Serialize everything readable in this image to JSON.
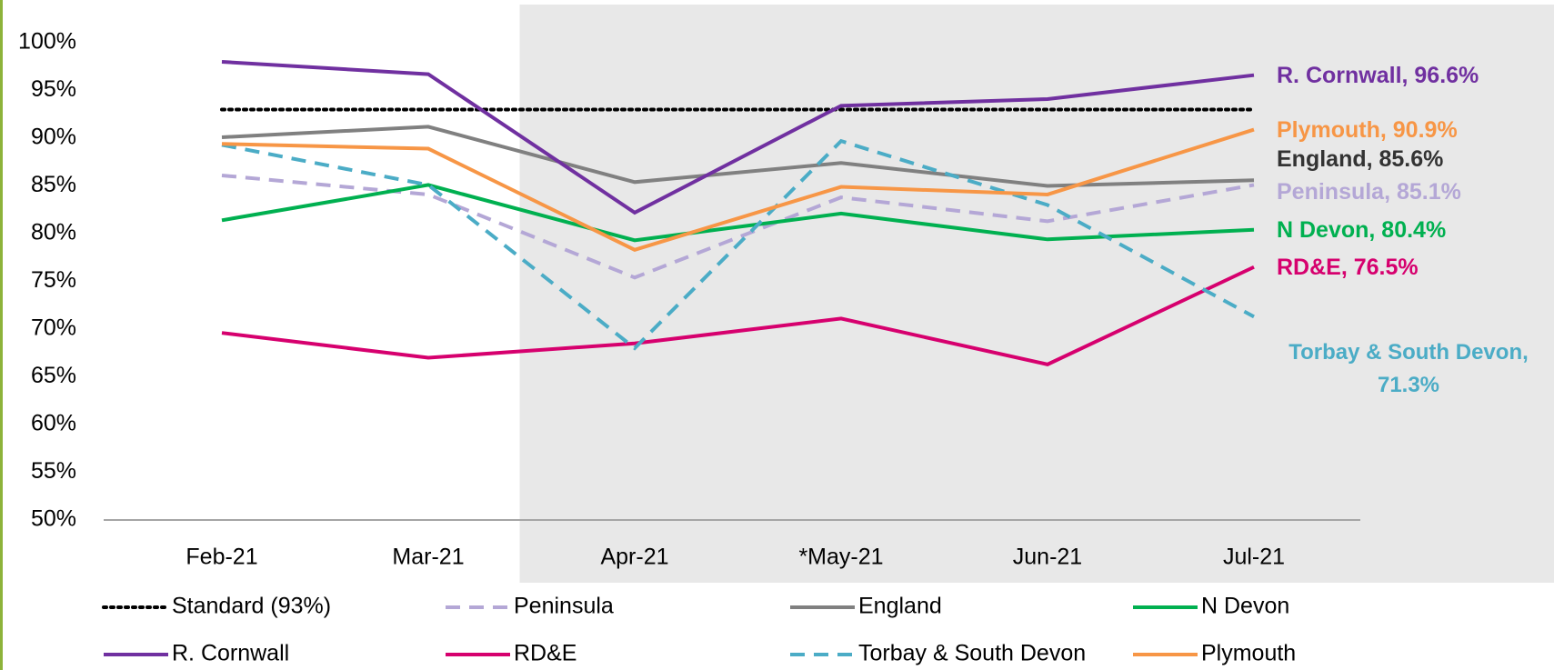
{
  "chart_data": {
    "type": "line",
    "categories": [
      "Feb-21",
      "Mar-21",
      "Apr-21",
      "*May-21",
      "Jun-21",
      "Jul-21"
    ],
    "ylim": [
      50,
      100
    ],
    "yticks": [
      {
        "value": 50,
        "label": "50%"
      },
      {
        "value": 55,
        "label": "55%"
      },
      {
        "value": 60,
        "label": "60%"
      },
      {
        "value": 65,
        "label": "65%"
      },
      {
        "value": 70,
        "label": "70%"
      },
      {
        "value": 75,
        "label": "75%"
      },
      {
        "value": 80,
        "label": "80%"
      },
      {
        "value": 85,
        "label": "85%"
      },
      {
        "value": 90,
        "label": "90%"
      },
      {
        "value": 95,
        "label": "95%"
      },
      {
        "value": 100,
        "label": "100%"
      }
    ],
    "grid": false,
    "legend": "bottom",
    "series": [
      {
        "name": "Standard (93%)",
        "color": "#000000",
        "dash": "dotted",
        "values": [
          93,
          93,
          93,
          93,
          93,
          93
        ]
      },
      {
        "name": "Peninsula",
        "color": "#b4a7d6",
        "dash": "dashed",
        "values": [
          86.1,
          84.1,
          75.4,
          83.8,
          81.3,
          85.1
        ],
        "value_labels": [
          null,
          null,
          null,
          null,
          null,
          "Peninsula, 85.1%"
        ]
      },
      {
        "name": "England",
        "color": "#808080",
        "dash": "solid",
        "values": [
          90.1,
          91.2,
          85.4,
          87.4,
          85.0,
          85.6
        ],
        "value_labels": [
          null,
          null,
          null,
          null,
          null,
          "England, 85.6%"
        ]
      },
      {
        "name": "N Devon",
        "color": "#00b050",
        "dash": "solid",
        "values": [
          81.4,
          85.1,
          79.3,
          82.1,
          79.4,
          80.4
        ],
        "value_labels": [
          null,
          null,
          null,
          null,
          null,
          "N Devon, 80.4%"
        ]
      },
      {
        "name": "R. Cornwall",
        "color": "#7030a0",
        "dash": "solid",
        "values": [
          98.0,
          96.7,
          82.2,
          93.4,
          94.1,
          96.6
        ],
        "value_labels": [
          null,
          null,
          null,
          null,
          null,
          "R. Cornwall, 96.6%"
        ]
      },
      {
        "name": "RD&E",
        "color": "#d6006e",
        "dash": "solid",
        "values": [
          69.6,
          67.0,
          68.5,
          71.1,
          66.3,
          76.5
        ],
        "value_labels": [
          null,
          null,
          null,
          null,
          null,
          "RD&E, 76.5%"
        ]
      },
      {
        "name": "Torbay & South Devon",
        "color": "#4bacc6",
        "dash": "dashed",
        "values": [
          89.3,
          85.1,
          68.0,
          89.7,
          83.0,
          71.3
        ],
        "value_labels": [
          null,
          null,
          null,
          null,
          null,
          "Torbay & South Devon, 71.3%"
        ]
      },
      {
        "name": "Plymouth",
        "color": "#f79646",
        "dash": "solid",
        "values": [
          89.4,
          88.9,
          78.3,
          84.9,
          84.1,
          90.9
        ],
        "value_labels": [
          null,
          null,
          null,
          null,
          null,
          "Plymouth, 90.9%"
        ]
      }
    ]
  }
}
